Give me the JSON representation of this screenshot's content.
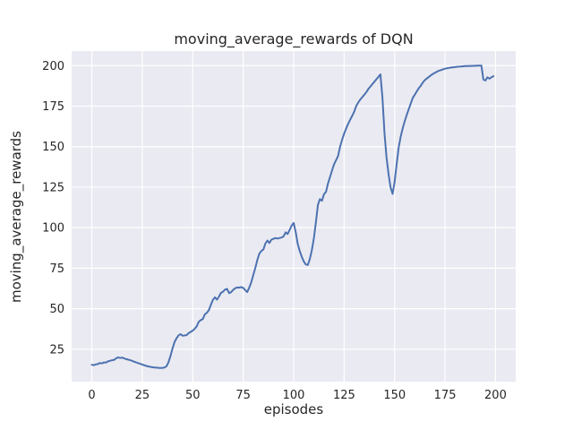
{
  "chart_data": {
    "type": "line",
    "title": "moving_average_rewards of DQN",
    "xlabel": "episodes",
    "ylabel": "moving_average_rewards",
    "xlim": [
      -10,
      210
    ],
    "ylim": [
      5,
      209
    ],
    "xticks": [
      0,
      25,
      50,
      75,
      100,
      125,
      150,
      175,
      200
    ],
    "yticks": [
      25,
      50,
      75,
      100,
      125,
      150,
      175,
      200
    ],
    "grid": true,
    "legend": "none",
    "colors": {
      "line": "#4c72b0",
      "plot_background": "#eaeaf2",
      "grid": "#ffffff",
      "figure_background": "#ffffff",
      "text": "#262626"
    },
    "series_name": "moving_average_rewards",
    "x": [
      0,
      1,
      2,
      3,
      4,
      5,
      6,
      7,
      8,
      9,
      10,
      11,
      12,
      13,
      14,
      15,
      16,
      17,
      18,
      19,
      20,
      21,
      22,
      23,
      24,
      25,
      26,
      27,
      28,
      29,
      30,
      31,
      32,
      33,
      34,
      35,
      36,
      37,
      38,
      39,
      40,
      41,
      42,
      43,
      44,
      45,
      46,
      47,
      48,
      49,
      50,
      51,
      52,
      53,
      54,
      55,
      56,
      57,
      58,
      59,
      60,
      61,
      62,
      63,
      64,
      65,
      66,
      67,
      68,
      69,
      70,
      71,
      72,
      73,
      74,
      75,
      76,
      77,
      78,
      79,
      80,
      81,
      82,
      83,
      84,
      85,
      86,
      87,
      88,
      89,
      90,
      91,
      92,
      93,
      94,
      95,
      96,
      97,
      98,
      99,
      100,
      101,
      102,
      103,
      104,
      105,
      106,
      107,
      108,
      109,
      110,
      111,
      112,
      113,
      114,
      115,
      116,
      117,
      118,
      119,
      120,
      121,
      122,
      123,
      124,
      125,
      126,
      127,
      128,
      129,
      130,
      131,
      132,
      133,
      134,
      135,
      136,
      137,
      138,
      139,
      140,
      141,
      142,
      143,
      144,
      145,
      146,
      147,
      148,
      149,
      150,
      151,
      152,
      153,
      154,
      155,
      156,
      157,
      158,
      159,
      160,
      161,
      162,
      163,
      164,
      165,
      166,
      167,
      168,
      169,
      170,
      171,
      172,
      173,
      174,
      175,
      176,
      177,
      178,
      179,
      180,
      181,
      182,
      183,
      184,
      185,
      186,
      187,
      188,
      189,
      190,
      191,
      192,
      193,
      194,
      195,
      196,
      197,
      198,
      199
    ],
    "y": [
      15.4,
      15.2,
      15.6,
      15.9,
      16.5,
      16.2,
      16.9,
      16.7,
      17.5,
      17.8,
      18.2,
      18.4,
      19.3,
      20.0,
      19.6,
      19.8,
      19.4,
      18.9,
      18.6,
      18.2,
      17.8,
      17.3,
      16.9,
      16.4,
      16.0,
      15.5,
      15.1,
      14.7,
      14.4,
      14.1,
      13.9,
      13.7,
      13.6,
      13.5,
      13.4,
      13.5,
      13.7,
      14.5,
      17.0,
      21.0,
      25.5,
      29.5,
      31.8,
      33.6,
      34.3,
      33.3,
      33.5,
      33.7,
      35.0,
      35.7,
      36.5,
      37.6,
      39.2,
      42.0,
      43.0,
      43.6,
      46.5,
      47.5,
      49.2,
      52.5,
      55.5,
      57.0,
      55.6,
      57.5,
      59.8,
      60.5,
      61.8,
      62.2,
      59.6,
      60.2,
      61.6,
      62.6,
      63.1,
      63.0,
      63.3,
      62.9,
      61.5,
      60.3,
      63.0,
      66.5,
      70.8,
      75.2,
      80.1,
      84.0,
      85.6,
      86.6,
      90.2,
      92.1,
      90.6,
      92.6,
      93.1,
      93.6,
      93.3,
      93.6,
      93.9,
      94.6,
      97.1,
      96.1,
      98.6,
      101.2,
      102.9,
      97.2,
      90.1,
      85.6,
      82.1,
      79.2,
      77.3,
      77.0,
      80.6,
      86.1,
      93.2,
      103.2,
      114.1,
      117.6,
      116.6,
      120.6,
      122.1,
      127.2,
      131.2,
      135.2,
      139.1,
      141.6,
      144.2,
      150.1,
      154.2,
      158.1,
      161.2,
      164.1,
      166.6,
      169.1,
      171.6,
      175.1,
      177.2,
      179.1,
      180.6,
      182.1,
      183.6,
      185.6,
      187.1,
      188.6,
      190.1,
      191.6,
      193.1,
      194.6,
      180.0,
      158.0,
      143.5,
      133.0,
      125.0,
      120.8,
      128.0,
      139.0,
      149.1,
      156.1,
      161.1,
      165.6,
      169.6,
      173.1,
      176.6,
      180.1,
      182.1,
      184.1,
      186.1,
      187.6,
      189.6,
      191.1,
      192.1,
      193.1,
      194.1,
      194.9,
      195.6,
      196.3,
      196.9,
      197.3,
      197.7,
      198.1,
      198.4,
      198.6,
      198.8,
      199.0,
      199.1,
      199.3,
      199.4,
      199.5,
      199.6,
      199.7,
      199.7,
      199.8,
      199.8,
      199.9,
      199.9,
      200.0,
      200.0,
      200.0,
      191.5,
      190.8,
      192.8,
      192.0,
      192.8,
      193.5
    ]
  }
}
